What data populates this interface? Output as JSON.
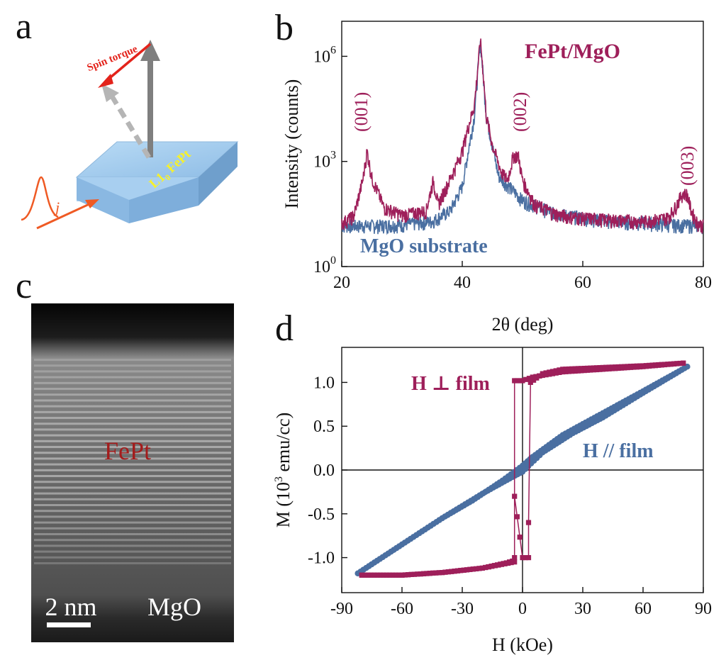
{
  "colors": {
    "fept": "#9e1f5a",
    "mgo": "#4a6fa1",
    "slab": "#9ec6ea",
    "arrow_red": "#e3231b",
    "arrow_gray": "#7f7f7f",
    "pulse": "#ef5a24",
    "label_yellow": "#f7f12a",
    "stem_red": "#9a1b1b"
  },
  "panel_a": {
    "letter": "a",
    "spin_torque_label": "Spin torque",
    "material_label": "L1",
    "material_sub": "0",
    "material_suffix": " FePt",
    "current_label": "j"
  },
  "panel_b": {
    "letter": "b",
    "peak_labels": [
      "(001)",
      "(002)",
      "(003)"
    ],
    "legend_fept": "FePt/MgO",
    "legend_mgo": "MgO substrate",
    "ylabel": "Intensity (counts)",
    "xlabel": "2θ (deg)",
    "yticks": [
      {
        "base": "10",
        "exp": "0"
      },
      {
        "base": "10",
        "exp": "3"
      },
      {
        "base": "10",
        "exp": "6"
      }
    ],
    "xticks": [
      "20",
      "40",
      "60",
      "80"
    ]
  },
  "panel_c": {
    "letter": "c",
    "layer_label": "FePt",
    "substrate_label": "MgO",
    "scale_label": "2 nm"
  },
  "panel_d": {
    "letter": "d",
    "perp_label": "H ⊥ film",
    "par_label": "H // film",
    "ylabel_pre": "M (10",
    "ylabel_exp": "3",
    "ylabel_post": " emu/cc)",
    "xlabel": "H (kOe)",
    "yticks": [
      "-1.0",
      "-0.5",
      "0.0",
      "0.5",
      "1.0"
    ],
    "xticks": [
      "-90",
      "-60",
      "-30",
      "0",
      "30",
      "60",
      "90"
    ]
  },
  "chart_data": [
    {
      "type": "line",
      "panel": "b",
      "xlabel": "2θ (deg)",
      "ylabel": "Intensity (counts)",
      "xlim": [
        20,
        80
      ],
      "ylim": [
        1,
        10000000
      ],
      "yscale": "log",
      "grid": false,
      "series": [
        {
          "name": "FePt/MgO",
          "x": [
            20,
            22,
            23.5,
            24.2,
            25,
            27,
            30,
            34,
            35.2,
            36,
            38.5,
            40,
            41,
            42,
            42.6,
            43,
            43.4,
            44,
            45,
            46.5,
            47.5,
            48.5,
            49.3,
            50,
            52,
            56,
            60,
            65,
            70,
            74,
            75,
            76.5,
            77.3,
            78,
            79,
            80
          ],
          "y": [
            18,
            28,
            300,
            2000,
            350,
            50,
            30,
            40,
            300,
            60,
            500,
            2000,
            10000,
            40000,
            500000,
            3000000,
            500000,
            20000,
            3000,
            500,
            300,
            1500,
            1500,
            300,
            60,
            30,
            25,
            22,
            20,
            25,
            40,
            120,
            120,
            40,
            18,
            15
          ]
        },
        {
          "name": "MgO substrate",
          "x": [
            20,
            25,
            30,
            35,
            38,
            40,
            42,
            43,
            44,
            46,
            50,
            55,
            60,
            65,
            70,
            75,
            80
          ],
          "y": [
            15,
            15,
            16,
            20,
            40,
            200,
            20000,
            3000000,
            20000,
            400,
            80,
            35,
            25,
            20,
            18,
            16,
            15
          ]
        }
      ],
      "annotations": [
        "(001)",
        "(002)",
        "(003)"
      ]
    },
    {
      "type": "scatter",
      "panel": "d",
      "xlabel": "H (kOe)",
      "ylabel": "M (10^3 emu/cc)",
      "xlim": [
        -90,
        90
      ],
      "ylim": [
        -1.4,
        1.4
      ],
      "grid": false,
      "series": [
        {
          "name": "H ⊥ film",
          "x": [
            -80,
            -60,
            -40,
            -20,
            -8,
            -5,
            -4,
            -4,
            0,
            3,
            3,
            4,
            10,
            20,
            40,
            60,
            80,
            80,
            60,
            40,
            20,
            5,
            0,
            -4,
            -4,
            -20,
            -40,
            -60,
            -80
          ],
          "y": [
            -1.2,
            -1.2,
            -1.17,
            -1.12,
            -1.06,
            -1.04,
            -1.0,
            -0.3,
            -1.0,
            -1.0,
            -0.6,
            1.0,
            1.1,
            1.15,
            1.17,
            1.19,
            1.22,
            1.22,
            1.18,
            1.15,
            1.12,
            1.06,
            1.02,
            1.02,
            -1.05,
            -1.12,
            -1.17,
            -1.2,
            -1.2
          ]
        },
        {
          "name": "H // film",
          "x": [
            -82,
            -60,
            -40,
            -20,
            -5,
            0,
            10,
            25,
            40,
            60,
            82,
            82,
            60,
            40,
            20,
            5,
            0,
            -10,
            -25,
            -40,
            -60,
            -82
          ],
          "y": [
            -1.18,
            -0.85,
            -0.55,
            -0.27,
            -0.08,
            -0.02,
            0.2,
            0.42,
            0.6,
            0.88,
            1.18,
            1.18,
            0.9,
            0.65,
            0.4,
            0.15,
            0.05,
            -0.12,
            -0.35,
            -0.55,
            -0.85,
            -1.18
          ]
        }
      ]
    }
  ]
}
